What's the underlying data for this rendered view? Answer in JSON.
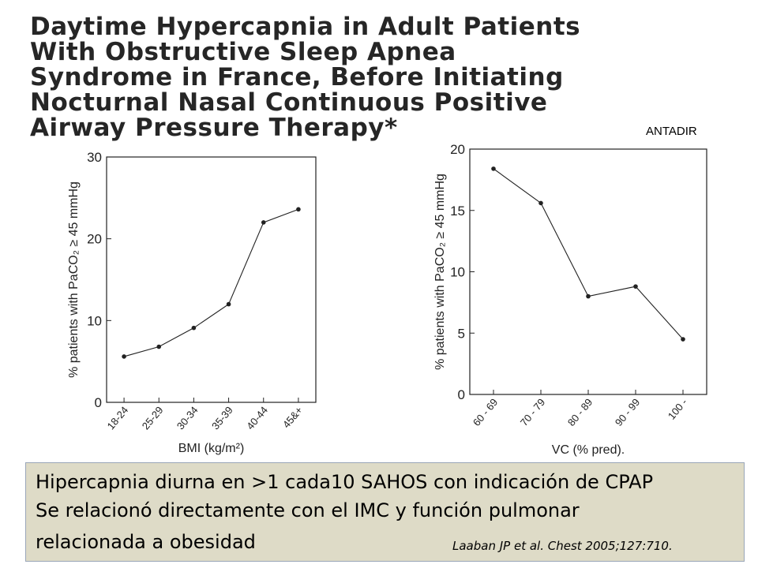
{
  "title_lines": [
    "Daytime Hypercapnia in Adult Patients",
    "With Obstructive Sleep Apnea",
    "Syndrome in France, Before Initiating",
    "Nocturnal Nasal Continuous Positive",
    "Airway Pressure Therapy*"
  ],
  "source_tag": "ANTADIR",
  "chart_data": [
    {
      "type": "line",
      "categories": [
        "18-24",
        "25-29",
        "30-34",
        "35-39",
        "40-44",
        "45&+"
      ],
      "values": [
        5.6,
        6.8,
        9.1,
        12.0,
        22.0,
        23.6
      ],
      "xlabel": "BMI (kg/m²)",
      "ylabel": "% patients with PaCO₂ ≥ 45 mmHg",
      "ylim": [
        0,
        30
      ],
      "yticks": [
        "0",
        "10",
        "20",
        "30"
      ],
      "grid": false
    },
    {
      "type": "line",
      "categories": [
        "60 - 69",
        "70 - 79",
        "80 - 89",
        "90 - 99",
        "100 -"
      ],
      "values": [
        18.4,
        15.6,
        8.0,
        8.8,
        4.5
      ],
      "xlabel": "VC (% pred).",
      "ylabel": "% patients with PaCO₂ ≥ 45 mmHg",
      "ylim": [
        0,
        20
      ],
      "yticks": [
        "0",
        "5",
        "10",
        "15",
        "20"
      ],
      "grid": false
    }
  ],
  "summary": {
    "line1": "Hipercapnia diurna en >1 cada10 SAHOS con indicación de CPAP",
    "line2": "Se relacionó directamente con el IMC y función pulmonar",
    "line3": "relacionada a obesidad",
    "citation": "Laaban JP et al. Chest 2005;127:710."
  },
  "colors": {
    "summary_bg": "#dedbc7",
    "summary_border": "#9aa6b8",
    "plot_ink": "#222222"
  }
}
